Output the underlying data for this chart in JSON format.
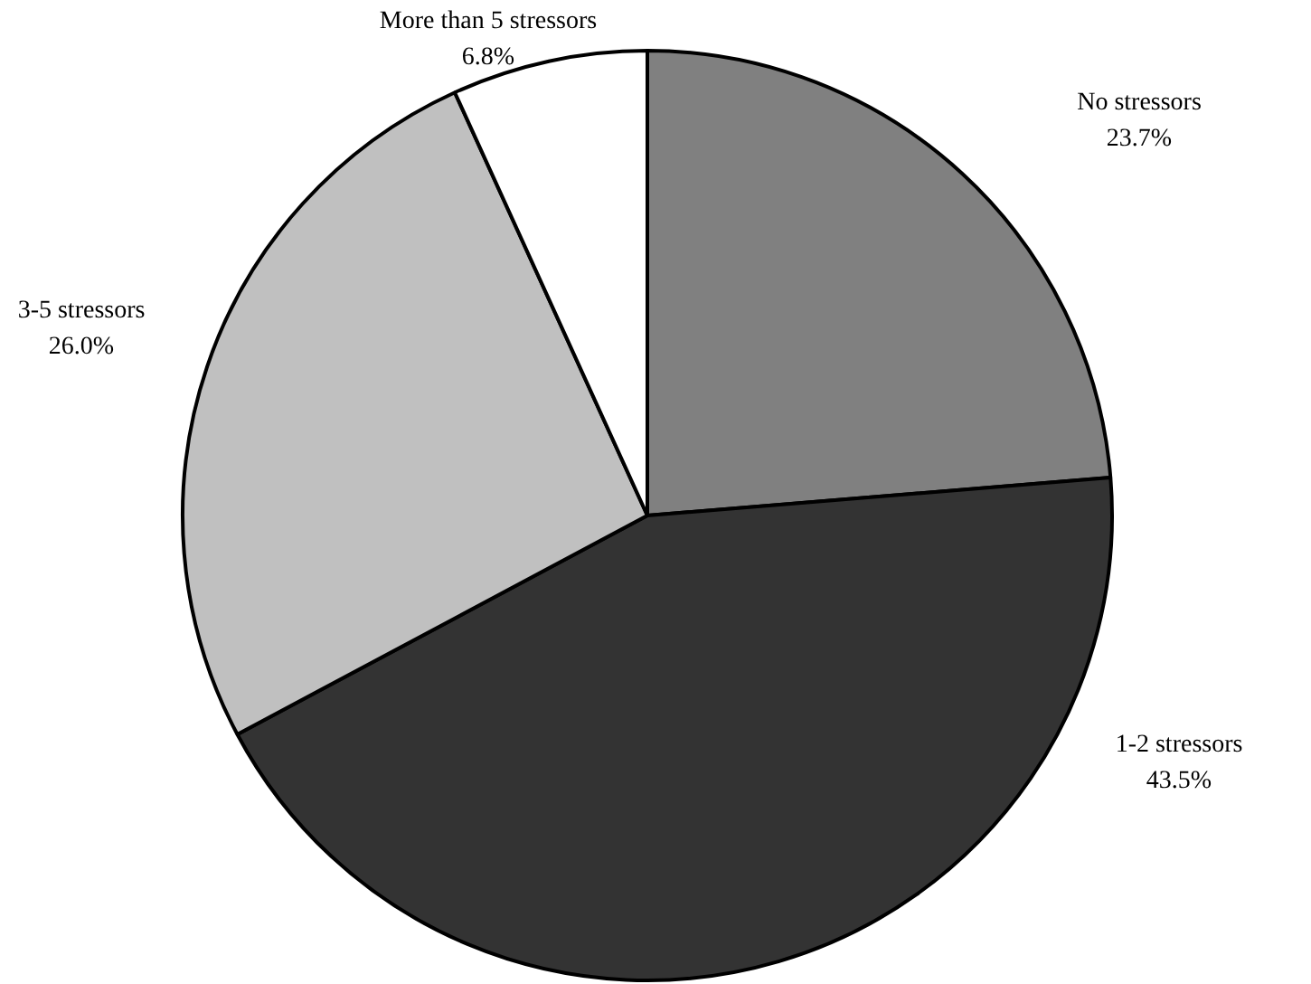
{
  "chart_data": {
    "type": "pie",
    "categories": [
      "No stressors",
      "1-2 stressors",
      "3-5 stressors",
      "More than 5 stressors"
    ],
    "values": [
      23.7,
      43.5,
      26.0,
      6.8
    ],
    "value_labels": [
      "23.7%",
      "43.5%",
      "26.0%",
      "6.8%"
    ],
    "colors": [
      "#808080",
      "#333333",
      "#c0c0c0",
      "#ffffff"
    ],
    "legend": false
  }
}
